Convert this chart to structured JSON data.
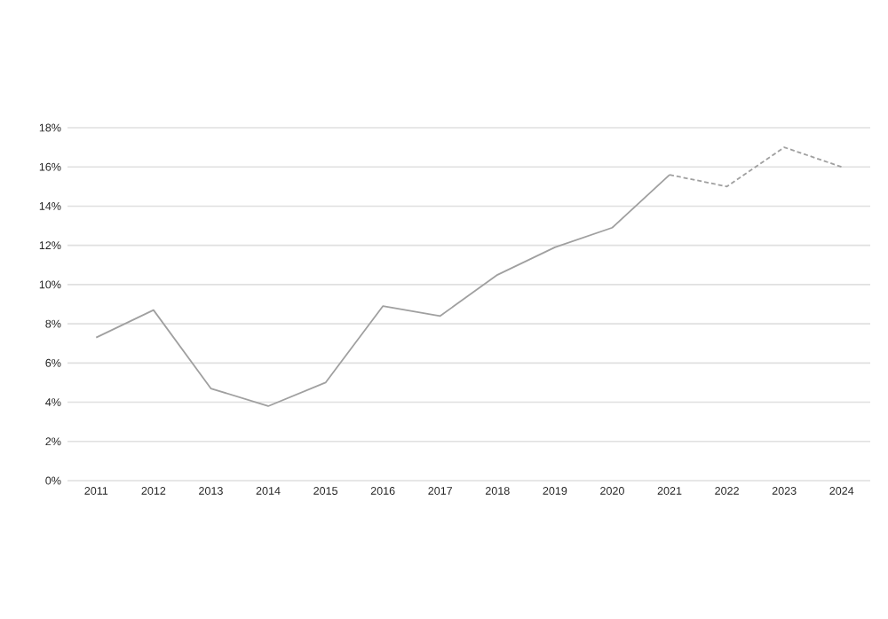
{
  "chart_data": {
    "type": "line",
    "categories": [
      "2011",
      "2012",
      "2013",
      "2014",
      "2015",
      "2016",
      "2017",
      "2018",
      "2019",
      "2020",
      "2021",
      "2022",
      "2023",
      "2024"
    ],
    "series": [
      {
        "color": "#a0a0a0",
        "line_style": "solid",
        "values": [
          7.3,
          8.7,
          4.7,
          3.8,
          5.0,
          8.9,
          8.4,
          10.5,
          11.9,
          12.9,
          15.6,
          null,
          null,
          null
        ]
      },
      {
        "color": "#a0a0a0",
        "line_style": "dashed",
        "values": [
          null,
          null,
          null,
          null,
          null,
          null,
          null,
          null,
          null,
          null,
          15.6,
          15.0,
          17.0,
          16.0
        ]
      }
    ],
    "ylim": [
      0,
      18
    ],
    "yticks": [
      {
        "value": 0,
        "label": "0%"
      },
      {
        "value": 2,
        "label": "2%"
      },
      {
        "value": 4,
        "label": "4%"
      },
      {
        "value": 6,
        "label": "6%"
      },
      {
        "value": 8,
        "label": "8%"
      },
      {
        "value": 10,
        "label": "10%"
      },
      {
        "value": 12,
        "label": "12%"
      },
      {
        "value": 14,
        "label": "14%"
      },
      {
        "value": 16,
        "label": "16%"
      },
      {
        "value": 18,
        "label": "18%"
      }
    ],
    "grid": "y",
    "marker": "none"
  }
}
